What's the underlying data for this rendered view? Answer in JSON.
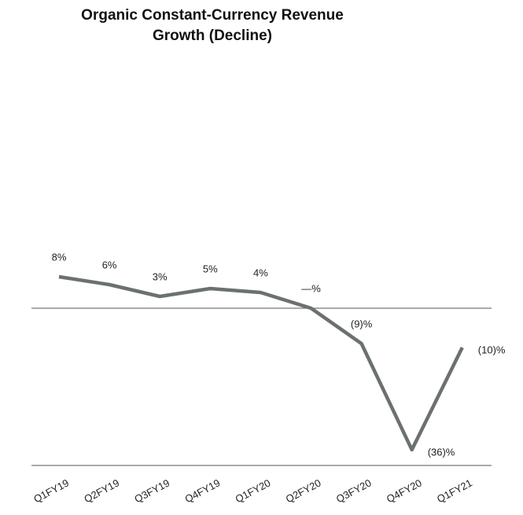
{
  "chart_data": {
    "type": "line",
    "title": [
      "Organic Constant-Currency Revenue",
      "Growth (Decline)"
    ],
    "categories": [
      "Q1FY19",
      "Q2FY19",
      "Q3FY19",
      "Q4FY19",
      "Q1FY20",
      "Q2FY20",
      "Q3FY20",
      "Q4FY20",
      "Q1FY21"
    ],
    "series": [
      {
        "color": "#6b716e",
        "values": [
          8,
          6,
          3,
          5,
          4,
          0,
          -9,
          -36,
          -10
        ],
        "value_labels": [
          "8%",
          "6%",
          "3%",
          "5%",
          "4%",
          "—%",
          "(9)%",
          "(36)%",
          "(10)%"
        ]
      }
    ],
    "ylim": [
      -40,
      20
    ]
  }
}
